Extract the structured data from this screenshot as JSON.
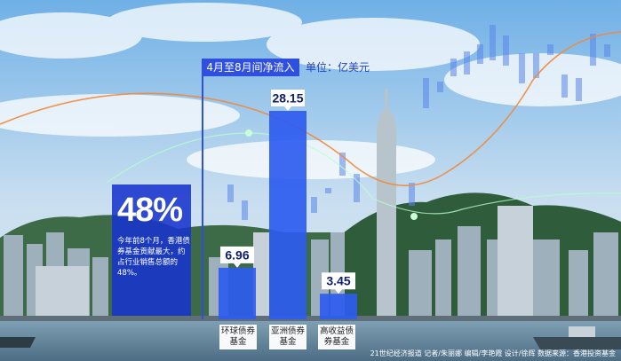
{
  "chart_data": {
    "type": "bar",
    "title": "4月至8月间净流入",
    "unit": "单位：亿美元",
    "categories": [
      "环球债券基金",
      "亚洲债券基金",
      "高收益债券基金"
    ],
    "values": [
      6.96,
      28.15,
      3.45
    ],
    "value_labels": [
      "6.96",
      "28.15",
      "3.45"
    ],
    "ylim": [
      0,
      30
    ],
    "bar_color": "#2e5cf0"
  },
  "highlight": {
    "big_value": "48%",
    "description": "今年前8个月，香港债券基金贡献最大，约占行业销售总额的48%。"
  },
  "credit": "21世纪经济报道 记者/朱丽娜 编辑/李艳霞 设计/徐辉 数据来源：香港投资基金"
}
